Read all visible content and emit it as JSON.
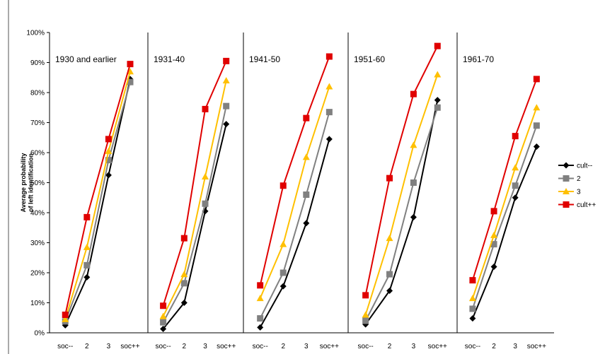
{
  "chart_data": {
    "type": "line",
    "ylabel_lines": [
      "Average probability",
      "of left identification"
    ],
    "y_ticks": [
      "0%",
      "10%",
      "20%",
      "30%",
      "40%",
      "50%",
      "60%",
      "70%",
      "80%",
      "90%",
      "100%"
    ],
    "ylim": [
      0,
      100
    ],
    "categories": [
      "soc--",
      "2",
      "3",
      "soc++"
    ],
    "grid": false,
    "legend_position": "right",
    "series_styles": [
      {
        "name": "cult--",
        "color": "#000000",
        "marker": "diamond"
      },
      {
        "name": "2",
        "color": "#808080",
        "marker": "square"
      },
      {
        "name": "3",
        "color": "#ffc000",
        "marker": "triangle"
      },
      {
        "name": "cult++",
        "color": "#e00000",
        "marker": "square"
      }
    ],
    "panels": [
      {
        "label": "1930 and earlier",
        "series": [
          [
            2.5,
            18.5,
            52.5,
            84.5
          ],
          [
            3.8,
            22.5,
            57.5,
            83.5
          ],
          [
            4.5,
            28.5,
            60.5,
            87.0
          ],
          [
            6.0,
            38.5,
            64.5,
            89.5
          ]
        ]
      },
      {
        "label": "1931-40",
        "series": [
          [
            1.3,
            10.0,
            40.5,
            69.5
          ],
          [
            3.5,
            16.5,
            43.0,
            75.5
          ],
          [
            5.5,
            19.5,
            52.0,
            84.0
          ],
          [
            9.0,
            31.5,
            74.5,
            90.5
          ]
        ]
      },
      {
        "label": "1941-50",
        "series": [
          [
            1.8,
            15.5,
            36.5,
            64.5
          ],
          [
            4.8,
            20.0,
            46.0,
            73.5
          ],
          [
            11.5,
            29.5,
            58.5,
            82.0
          ],
          [
            15.8,
            49.0,
            71.5,
            92.0
          ]
        ]
      },
      {
        "label": "1951-60",
        "series": [
          [
            2.8,
            14.0,
            38.5,
            77.5
          ],
          [
            4.0,
            19.5,
            50.0,
            75.0
          ],
          [
            6.0,
            31.5,
            62.5,
            86.0
          ],
          [
            12.5,
            51.5,
            79.5,
            95.5
          ]
        ]
      },
      {
        "label": "1961-70",
        "series": [
          [
            4.8,
            22.0,
            45.0,
            62.0
          ],
          [
            8.0,
            29.5,
            49.0,
            69.0
          ],
          [
            11.5,
            32.5,
            55.0,
            75.0
          ],
          [
            17.5,
            40.5,
            65.5,
            84.5
          ]
        ]
      }
    ]
  }
}
